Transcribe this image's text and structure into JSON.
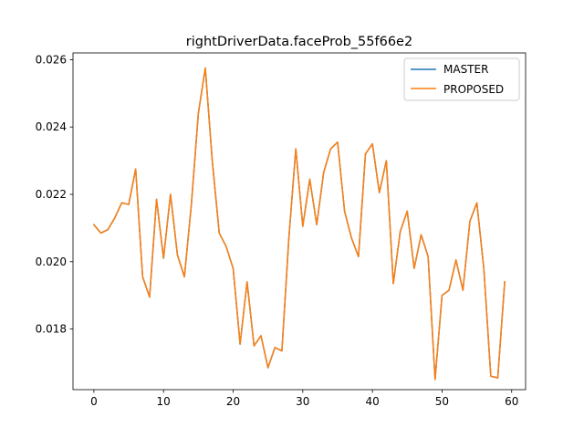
{
  "chart_data": {
    "type": "line",
    "title": "rightDriverData.faceProb_55f66e2",
    "xlabel": "",
    "ylabel": "",
    "xlim": [
      -3,
      62
    ],
    "ylim": [
      0.0162,
      0.0262
    ],
    "x_ticks": [
      0,
      10,
      20,
      30,
      40,
      50,
      60
    ],
    "x_tick_labels": [
      "0",
      "10",
      "20",
      "30",
      "40",
      "50",
      "60"
    ],
    "y_ticks": [
      0.018,
      0.02,
      0.022,
      0.024,
      0.026
    ],
    "y_tick_labels": [
      "0.018",
      "0.020",
      "0.022",
      "0.024",
      "0.026"
    ],
    "grid": false,
    "legend_position": "top-right",
    "x": [
      0,
      1,
      2,
      3,
      4,
      5,
      6,
      7,
      8,
      9,
      10,
      11,
      12,
      13,
      14,
      15,
      16,
      17,
      18,
      19,
      20,
      21,
      22,
      23,
      24,
      25,
      26,
      27,
      28,
      29,
      30,
      31,
      32,
      33,
      34,
      35,
      36,
      37,
      38,
      39,
      40,
      41,
      42,
      43,
      44,
      45,
      46,
      47,
      48,
      49,
      50,
      51,
      52,
      53,
      54,
      55,
      56,
      57,
      58,
      59
    ],
    "series": [
      {
        "name": "MASTER",
        "color": "#1f77b4",
        "values": [
          0.0211,
          0.02085,
          0.02095,
          0.0213,
          0.02175,
          0.0217,
          0.02275,
          0.01955,
          0.01895,
          0.02185,
          0.0201,
          0.022,
          0.0202,
          0.01955,
          0.0217,
          0.0244,
          0.02575,
          0.023,
          0.02085,
          0.02045,
          0.0198,
          0.01755,
          0.0194,
          0.0175,
          0.0178,
          0.01685,
          0.01745,
          0.01735,
          0.0207,
          0.02335,
          0.02105,
          0.02245,
          0.0211,
          0.02265,
          0.02335,
          0.02355,
          0.0215,
          0.0207,
          0.02015,
          0.0232,
          0.0235,
          0.02205,
          0.023,
          0.01935,
          0.0209,
          0.0215,
          0.0198,
          0.0208,
          0.02015,
          0.0165,
          0.019,
          0.01915,
          0.02005,
          0.01915,
          0.0212,
          0.02175,
          0.0198,
          0.0166,
          0.01655,
          0.0194
        ]
      },
      {
        "name": "PROPOSED",
        "color": "#ff7f0e",
        "values": [
          0.0211,
          0.02085,
          0.02095,
          0.0213,
          0.02175,
          0.0217,
          0.02275,
          0.01955,
          0.01895,
          0.02185,
          0.0201,
          0.022,
          0.0202,
          0.01955,
          0.0217,
          0.0244,
          0.02575,
          0.023,
          0.02085,
          0.02045,
          0.0198,
          0.01755,
          0.0194,
          0.0175,
          0.0178,
          0.01685,
          0.01745,
          0.01735,
          0.0207,
          0.02335,
          0.02105,
          0.02245,
          0.0211,
          0.02265,
          0.02335,
          0.02355,
          0.0215,
          0.0207,
          0.02015,
          0.0232,
          0.0235,
          0.02205,
          0.023,
          0.01935,
          0.0209,
          0.0215,
          0.0198,
          0.0208,
          0.02015,
          0.0165,
          0.019,
          0.01915,
          0.02005,
          0.01915,
          0.0212,
          0.02175,
          0.0198,
          0.0166,
          0.01655,
          0.0194
        ]
      }
    ]
  }
}
